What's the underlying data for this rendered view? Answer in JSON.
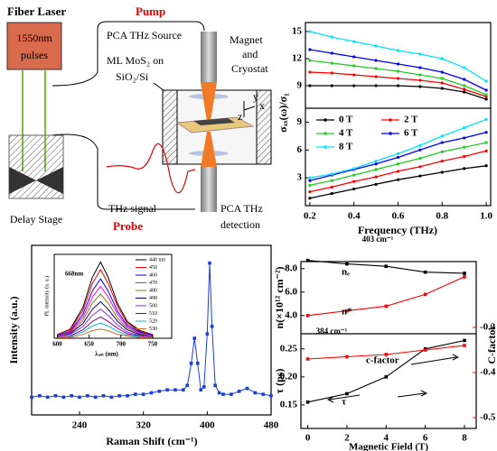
{
  "diagram": {
    "laser_title": "Fiber Laser",
    "laser_box": [
      "1550nm",
      "pulses"
    ],
    "pump": "Pump",
    "source": "PCA THz Source",
    "magnet": [
      "Magnet",
      "and",
      "Cryostat"
    ],
    "sample": [
      "ML MoS₂ on",
      "SiO₂/Si"
    ],
    "axes": [
      "y",
      "x",
      "z"
    ],
    "signal": "THz signal",
    "probe": "Probe",
    "detector": [
      "PCA THz",
      "detection"
    ],
    "stage": "Delay Stage"
  },
  "chart_data": [
    {
      "type": "line",
      "x": [
        0.2,
        0.3,
        0.4,
        0.5,
        0.6,
        0.7,
        0.8,
        0.9,
        1.0
      ],
      "xlim": [
        0.18,
        1.02
      ],
      "xticks": [
        0.2,
        0.4,
        0.6,
        0.8,
        {
          "value": 1.0,
          "label": "1.0"
        }
      ],
      "xlabel": "Frequency (THz)",
      "ylabel": "σₓₓ(ω)/σ₁",
      "legend": "upper left",
      "series": [
        {
          "name": "0 T",
          "color": "#000000"
        },
        {
          "name": "2 T",
          "color": "#ff0000"
        },
        {
          "name": "4 T",
          "color": "#22cc22"
        },
        {
          "name": "6 T",
          "color": "#0000ff"
        },
        {
          "name": "8 T",
          "color": "#00e5ff"
        }
      ],
      "panels": [
        {
          "ylim": [
            6.5,
            16
          ],
          "yticks": [
            9,
            12,
            15
          ],
          "values": [
            [
              9.0,
              9.0,
              9.0,
              9.0,
              9.0,
              8.9,
              8.7,
              8.3,
              7.5
            ],
            [
              10.5,
              10.4,
              10.2,
              10.0,
              9.8,
              9.6,
              9.3,
              8.6,
              7.8
            ],
            [
              11.8,
              11.5,
              11.2,
              10.9,
              10.6,
              10.2,
              9.8,
              9.0,
              8.0
            ],
            [
              13.0,
              12.6,
              12.2,
              11.8,
              11.4,
              11.0,
              10.5,
              9.7,
              8.5
            ],
            [
              15.0,
              14.4,
              13.9,
              13.4,
              12.9,
              12.5,
              12.0,
              11.0,
              9.5
            ]
          ]
        },
        {
          "ylim": [
            0,
            10.5
          ],
          "yticks": [
            3,
            6,
            9
          ],
          "values": [
            [
              0.8,
              1.3,
              1.8,
              2.3,
              2.8,
              3.2,
              3.6,
              4.0,
              4.3
            ],
            [
              1.5,
              2.0,
              2.6,
              3.1,
              3.7,
              4.2,
              4.8,
              5.3,
              5.9
            ],
            [
              2.2,
              2.7,
              3.3,
              3.9,
              4.5,
              5.1,
              5.8,
              6.3,
              6.8
            ],
            [
              2.7,
              3.3,
              3.9,
              4.5,
              5.2,
              6.0,
              6.8,
              7.3,
              7.9
            ],
            [
              3.0,
              3.4,
              4.0,
              4.8,
              5.6,
              6.5,
              7.5,
              8.4,
              9.3
            ]
          ]
        }
      ]
    },
    {
      "type": "line",
      "xlabel": "Raman Shift (cm⁻¹)",
      "ylabel": "Intensity (a.u.)",
      "color": "#1a3fd6",
      "xlim": [
        180,
        480
      ],
      "xticks": [
        240,
        320,
        400,
        480
      ],
      "ylim": [
        -0.1,
        1.05
      ],
      "x": [
        180,
        190,
        200,
        210,
        220,
        230,
        240,
        250,
        260,
        270,
        280,
        290,
        300,
        310,
        320,
        330,
        340,
        350,
        360,
        370,
        375,
        380,
        384,
        388,
        392,
        396,
        400,
        403,
        406,
        410,
        415,
        420,
        430,
        440,
        450,
        460,
        470,
        480
      ],
      "values": [
        0.02,
        0.03,
        0.02,
        0.03,
        0.02,
        0.03,
        0.02,
        0.03,
        0.02,
        0.03,
        0.02,
        0.03,
        0.03,
        0.04,
        0.04,
        0.05,
        0.06,
        0.07,
        0.07,
        0.07,
        0.1,
        0.25,
        0.42,
        0.25,
        0.07,
        0.09,
        0.45,
        0.93,
        0.5,
        0.1,
        0.05,
        0.04,
        0.04,
        0.06,
        0.08,
        0.05,
        0.04,
        0.03
      ],
      "annotations": [
        "384 cm⁻¹",
        "403 cm⁻¹"
      ]
    },
    {
      "type": "line",
      "xlabel": "λₑₘ (nm)",
      "ylabel": "PL intensity (a. u.)",
      "annotation": "668nm",
      "xlim": [
        595,
        780
      ],
      "xticks": [
        600,
        650,
        700,
        750
      ],
      "ylim": [
        0,
        1.1
      ],
      "x": [
        600,
        620,
        640,
        655,
        668,
        680,
        695,
        710,
        730,
        750
      ],
      "series": [
        {
          "name": "440 nm",
          "color": "#000000",
          "values": [
            0.05,
            0.12,
            0.4,
            0.8,
            1,
            0.8,
            0.45,
            0.22,
            0.1,
            0.05
          ]
        },
        {
          "name": "450",
          "color": "#ff0000",
          "values": [
            0.05,
            0.11,
            0.36,
            0.72,
            0.9,
            0.72,
            0.41,
            0.2,
            0.09,
            0.05
          ]
        },
        {
          "name": "460",
          "color": "#0000ff",
          "values": [
            0.04,
            0.09,
            0.31,
            0.62,
            0.78,
            0.62,
            0.35,
            0.17,
            0.08,
            0.04
          ]
        },
        {
          "name": "470",
          "color": "#ff00ff",
          "values": [
            0.03,
            0.08,
            0.27,
            0.54,
            0.68,
            0.54,
            0.31,
            0.15,
            0.07,
            0.03
          ]
        },
        {
          "name": "480",
          "color": "#808000",
          "values": [
            0.03,
            0.07,
            0.23,
            0.46,
            0.58,
            0.46,
            0.26,
            0.13,
            0.06,
            0.03
          ]
        },
        {
          "name": "490",
          "color": "#000080",
          "values": [
            0.02,
            0.06,
            0.19,
            0.38,
            0.48,
            0.38,
            0.22,
            0.11,
            0.05,
            0.02
          ]
        },
        {
          "name": "500",
          "color": "#8a2be2",
          "values": [
            0.02,
            0.05,
            0.15,
            0.3,
            0.38,
            0.3,
            0.17,
            0.08,
            0.04,
            0.02
          ]
        },
        {
          "name": "510",
          "color": "#800080",
          "values": [
            0.01,
            0.03,
            0.11,
            0.22,
            0.28,
            0.22,
            0.13,
            0.06,
            0.03,
            0.01
          ]
        },
        {
          "name": "520",
          "color": "#00bcd4",
          "values": [
            0.01,
            0.02,
            0.08,
            0.16,
            0.2,
            0.16,
            0.09,
            0.04,
            0.02,
            0.01
          ]
        },
        {
          "name": "530",
          "color": "#d2691e",
          "values": [
            0.01,
            0.01,
            0.05,
            0.1,
            0.12,
            0.1,
            0.05,
            0.03,
            0.01,
            0.01
          ]
        }
      ]
    },
    {
      "type": "line",
      "xlabel": "Magnetic Field (T)",
      "x": [
        0,
        2,
        4,
        6,
        8
      ],
      "xlim": [
        -0.35,
        8.6
      ],
      "xticks": [
        0,
        2,
        4,
        6,
        8
      ],
      "y2lim": [
        -0.524,
        -0.154
      ],
      "y2ticks": [
        -0.3,
        -0.4,
        -0.5
      ],
      "y2label": "C-factor",
      "y2color": "#ff0000",
      "panels": [
        {
          "ylabel": "n(×10¹² cm⁻²)",
          "ylim": [
            2.45,
            8.6
          ],
          "yticks": [
            {
              "value": 4,
              "label": "4.0"
            },
            {
              "value": 6,
              "label": "6.0"
            },
            {
              "value": 8,
              "label": "8.0"
            }
          ],
          "series": [
            {
              "name": "nₑ",
              "color": "#000000",
              "values": [
                8.7,
                8.4,
                8.2,
                7.7,
                7.6
              ]
            },
            {
              "name": "n*",
              "color": "#ff0000",
              "values": [
                4.0,
                4.4,
                4.8,
                5.8,
                7.3
              ]
            }
          ]
        },
        {
          "ylabel": "τ (ps)",
          "ylim": [
            0.108,
            0.277
          ],
          "yticks": [
            0.15,
            {
              "value": 0.2,
              "label": "0.20"
            },
            0.25
          ],
          "series": [
            {
              "name": "τ",
              "color": "#000000",
              "values": [
                0.155,
                0.17,
                0.2,
                0.25,
                0.265
              ]
            },
            {
              "name": "c-factor",
              "color": "#ff0000",
              "axis": "y2",
              "values": [
                -0.37,
                -0.365,
                -0.36,
                -0.35,
                -0.34
              ]
            }
          ]
        }
      ]
    }
  ]
}
